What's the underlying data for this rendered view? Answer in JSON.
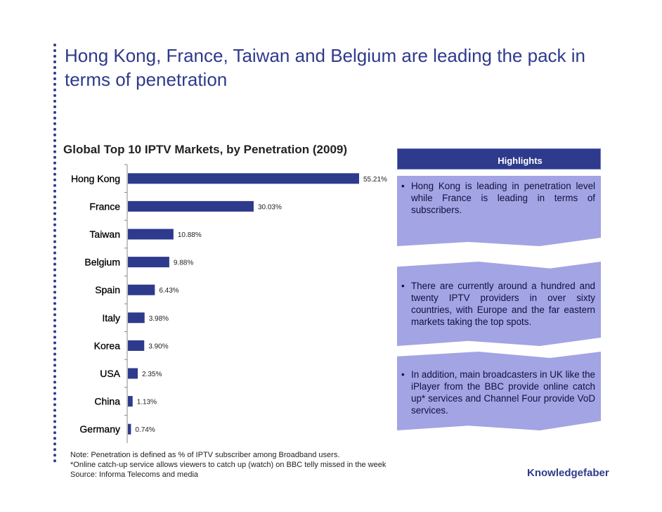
{
  "slide": {
    "title": "Hong Kong, France, Taiwan and Belgium are leading the pack in terms of penetration",
    "brand": "Knowledgefaber"
  },
  "highlights": {
    "header": "Highlights",
    "items": [
      "Hong Kong is leading in penetration level while France is leading in terms of subscribers.",
      "There are currently around a hundred and twenty IPTV providers in over sixty countries, with Europe and the far eastern markets taking the top spots.",
      "In addition, main broadcasters in UK like the iPlayer from the BBC provide online catch up* services and Channel Four provide VoD services."
    ]
  },
  "notes": {
    "line1": "Note: Penetration is defined as % of IPTV subscriber among Broadband users.",
    "line2": "*Online catch-up service allows viewers to catch up (watch) on BBC telly missed in the week",
    "line3": "Source: Informa Telecoms and media"
  },
  "colors": {
    "bar": "#2e3a8c",
    "title": "#2e3a8c",
    "highlight_box": "#a3a4e3"
  },
  "chart_data": {
    "type": "bar",
    "orientation": "horizontal",
    "title": "Global Top 10 IPTV Markets, by Penetration (2009)",
    "xlabel": "",
    "ylabel": "",
    "categories": [
      "Hong Kong",
      "France",
      "Taiwan",
      "Belgium",
      "Spain",
      "Italy",
      "Korea",
      "USA",
      "China",
      "Germany"
    ],
    "values": [
      55.21,
      30.03,
      10.88,
      9.88,
      6.43,
      3.98,
      3.9,
      2.35,
      1.13,
      0.74
    ],
    "labels": [
      "55.21%",
      "30.03%",
      "10.88%",
      "9.88%",
      "6.43%",
      "3.98%",
      "3.90%",
      "2.35%",
      "1.13%",
      "0.74%"
    ],
    "xlim": [
      0,
      55.21
    ],
    "grid": false,
    "legend": "none"
  }
}
